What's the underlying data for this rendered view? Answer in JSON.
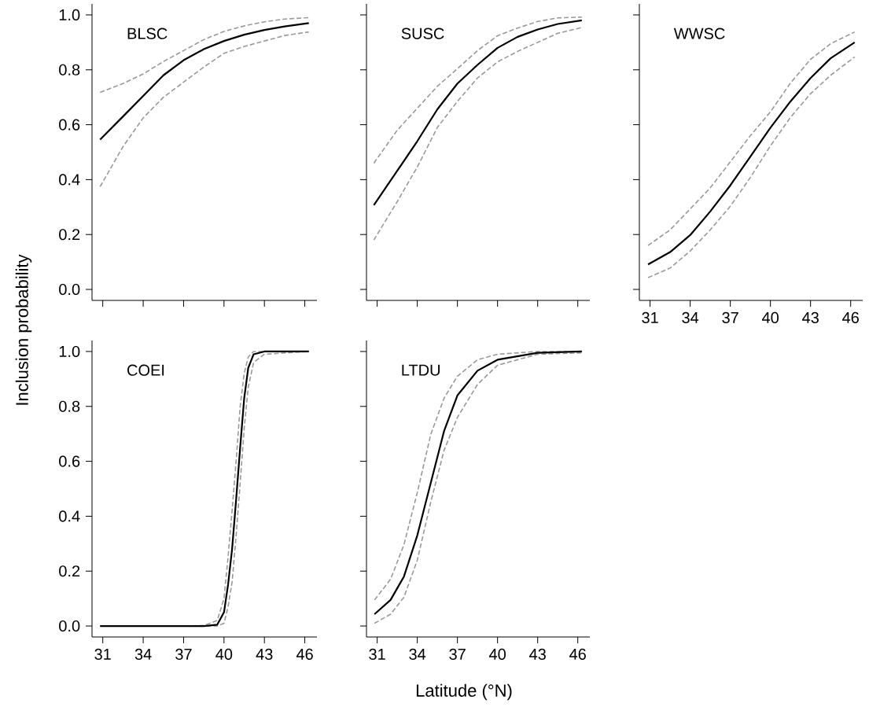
{
  "chart_data": [
    {
      "type": "line",
      "title": "BLSC",
      "ylabel": "Inclusion probability",
      "tick_labels": "y",
      "x": [
        30.8,
        32.5,
        34,
        35.5,
        37,
        38.5,
        40,
        41.5,
        43,
        44.5,
        46.3
      ],
      "series": [
        {
          "color": "#999999",
          "line_style": "dashed",
          "values": [
            0.718,
            0.75,
            0.785,
            0.83,
            0.87,
            0.91,
            0.94,
            0.96,
            0.975,
            0.985,
            0.99
          ]
        },
        {
          "color": "#999999",
          "line_style": "dashed",
          "values": [
            0.374,
            0.52,
            0.625,
            0.7,
            0.755,
            0.81,
            0.86,
            0.885,
            0.905,
            0.925,
            0.938
          ]
        },
        {
          "color": "#000000",
          "line_style": "solid",
          "values": [
            0.546,
            0.63,
            0.705,
            0.78,
            0.835,
            0.875,
            0.905,
            0.928,
            0.945,
            0.958,
            0.97
          ]
        }
      ],
      "xlim": [
        30.2,
        46.9
      ],
      "ylim": [
        -0.04,
        1.04
      ],
      "xticks": [
        31,
        34,
        37,
        40,
        43,
        46
      ],
      "yticks": [
        {
          "value": 0,
          "label": "0.0"
        },
        {
          "value": 0.2,
          "label": "0.2"
        },
        {
          "value": 0.4,
          "label": "0.4"
        },
        {
          "value": 0.6,
          "label": "0.6"
        },
        {
          "value": 0.8,
          "label": "0.8"
        },
        {
          "value": 1,
          "label": "1.0"
        }
      ]
    },
    {
      "type": "line",
      "title": "SUSC",
      "tick_labels": false,
      "x": [
        30.75,
        32.5,
        34,
        35.5,
        37,
        38.5,
        40,
        41.5,
        43,
        44.5,
        46.3
      ],
      "series": [
        {
          "color": "#999999",
          "line_style": "dashed",
          "values": [
            0.46,
            0.58,
            0.66,
            0.74,
            0.804,
            0.87,
            0.924,
            0.952,
            0.976,
            0.989,
            0.992
          ]
        },
        {
          "color": "#999999",
          "line_style": "dashed",
          "values": [
            0.18,
            0.32,
            0.446,
            0.59,
            0.685,
            0.77,
            0.829,
            0.867,
            0.9,
            0.933,
            0.954
          ]
        },
        {
          "color": "#000000",
          "line_style": "solid",
          "values": [
            0.307,
            0.432,
            0.54,
            0.656,
            0.75,
            0.818,
            0.88,
            0.92,
            0.947,
            0.967,
            0.98
          ]
        }
      ],
      "xlim": [
        30.2,
        46.9
      ],
      "ylim": [
        -0.04,
        1.04
      ],
      "xticks": [
        31,
        34,
        37,
        40,
        43,
        46
      ],
      "yticks": [
        0,
        0.2,
        0.4,
        0.6,
        0.8,
        1
      ]
    },
    {
      "type": "line",
      "title": "WWSC",
      "tick_labels": "x",
      "x": [
        30.85,
        32.5,
        34,
        35.5,
        37,
        38.5,
        40,
        41.5,
        43,
        44.5,
        46.3
      ],
      "series": [
        {
          "color": "#999999",
          "line_style": "dashed",
          "values": [
            0.16,
            0.217,
            0.293,
            0.37,
            0.465,
            0.56,
            0.647,
            0.752,
            0.838,
            0.895,
            0.938
          ]
        },
        {
          "color": "#999999",
          "line_style": "dashed",
          "values": [
            0.043,
            0.078,
            0.14,
            0.217,
            0.303,
            0.408,
            0.523,
            0.627,
            0.713,
            0.78,
            0.847
          ]
        },
        {
          "color": "#000000",
          "line_style": "solid",
          "values": [
            0.091,
            0.136,
            0.198,
            0.284,
            0.379,
            0.484,
            0.589,
            0.685,
            0.77,
            0.842,
            0.9
          ]
        }
      ],
      "xlim": [
        30.2,
        46.9
      ],
      "ylim": [
        -0.04,
        1.04
      ],
      "xticks": [
        31,
        34,
        37,
        40,
        43,
        46
      ],
      "yticks": [
        0,
        0.2,
        0.4,
        0.6,
        0.8,
        1
      ]
    },
    {
      "type": "line",
      "title": "COEI",
      "x": [
        30.8,
        34,
        37,
        38.5,
        39.5,
        40,
        40.3,
        40.6,
        40.9,
        41.2,
        41.5,
        41.8,
        42.2,
        43,
        46.3
      ],
      "series": [
        {
          "color": "#999999",
          "line_style": "dashed",
          "values": [
            0,
            0,
            0,
            0.002,
            0.02,
            0.1,
            0.25,
            0.42,
            0.6,
            0.8,
            0.92,
            0.98,
            1,
            1,
            1
          ]
        },
        {
          "color": "#999999",
          "line_style": "dashed",
          "values": [
            0,
            0,
            0,
            0,
            0,
            0.01,
            0.07,
            0.16,
            0.33,
            0.52,
            0.72,
            0.87,
            0.96,
            0.99,
            1
          ]
        },
        {
          "color": "#000000",
          "line_style": "solid",
          "values": [
            0,
            0,
            0,
            0,
            0.005,
            0.05,
            0.15,
            0.28,
            0.46,
            0.65,
            0.83,
            0.94,
            0.99,
            1,
            1
          ]
        }
      ],
      "xlim": [
        30.2,
        46.9
      ],
      "ylim": [
        -0.04,
        1.04
      ],
      "xticks": [
        31,
        34,
        37,
        40,
        43,
        46
      ],
      "yticks": [
        {
          "value": 0,
          "label": "0.0"
        },
        {
          "value": 0.2,
          "label": "0.2"
        },
        {
          "value": 0.4,
          "label": "0.4"
        },
        {
          "value": 0.6,
          "label": "0.6"
        },
        {
          "value": 0.8,
          "label": "0.8"
        },
        {
          "value": 1,
          "label": "1.0"
        }
      ]
    },
    {
      "type": "line",
      "title": "LTDU",
      "xlabel": "Latitude (°N)",
      "tick_labels": "x",
      "x": [
        30.8,
        32,
        33,
        34,
        35,
        36,
        37,
        38.5,
        40,
        43,
        46.3
      ],
      "series": [
        {
          "color": "#999999",
          "line_style": "dashed",
          "values": [
            0.095,
            0.17,
            0.296,
            0.486,
            0.697,
            0.83,
            0.91,
            0.97,
            0.99,
            1,
            1
          ]
        },
        {
          "color": "#999999",
          "line_style": "dashed",
          "values": [
            0.01,
            0.043,
            0.105,
            0.24,
            0.45,
            0.64,
            0.76,
            0.88,
            0.95,
            0.99,
            0.995
          ]
        },
        {
          "color": "#000000",
          "line_style": "solid",
          "values": [
            0.043,
            0.095,
            0.18,
            0.33,
            0.52,
            0.71,
            0.84,
            0.93,
            0.97,
            0.995,
            1
          ]
        }
      ],
      "xlim": [
        30.2,
        46.9
      ],
      "ylim": [
        -0.04,
        1.04
      ],
      "xticks": [
        31,
        34,
        37,
        40,
        43,
        46
      ],
      "yticks": [
        0,
        0.2,
        0.4,
        0.6,
        0.8,
        1
      ]
    }
  ]
}
